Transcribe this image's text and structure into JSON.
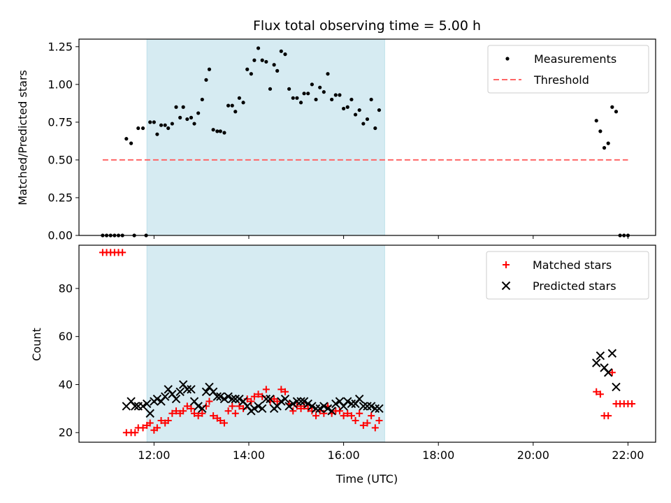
{
  "chart_data": [
    {
      "type": "scatter",
      "title": "Flux total observing time = 5.00 h",
      "ylabel": "Matched/Predicted stars",
      "xlabel": "",
      "xlim": [
        "10:25",
        "22:35"
      ],
      "ylim": [
        0,
        1.3
      ],
      "yticks": [
        "0.00",
        "0.25",
        "0.50",
        "0.75",
        "1.00",
        "1.25"
      ],
      "yticks_values": [
        0,
        0.25,
        0.5,
        0.75,
        1.0,
        1.25
      ],
      "xtick_times": [
        "12:00",
        "14:00",
        "16:00",
        "18:00",
        "20:00",
        "22:00"
      ],
      "shaded_span": [
        "11:51",
        "16:52"
      ],
      "shaded_color": "#add8e6",
      "legend": "top-right",
      "series": [
        {
          "name": "Measurements",
          "color": "#000000",
          "marker": "dot",
          "points": [
            [
              "10:55",
              0
            ],
            [
              "11:00",
              0
            ],
            [
              "11:05",
              0
            ],
            [
              "11:10",
              0
            ],
            [
              "11:15",
              0
            ],
            [
              "11:20",
              0
            ],
            [
              "11:25",
              0.64
            ],
            [
              "11:31",
              0.61
            ],
            [
              "11:35",
              0
            ],
            [
              "11:40",
              0.71
            ],
            [
              "11:46",
              0.71
            ],
            [
              "11:50",
              0
            ],
            [
              "11:55",
              0.75
            ],
            [
              "12:00",
              0.75
            ],
            [
              "12:04",
              0.67
            ],
            [
              "12:09",
              0.73
            ],
            [
              "12:14",
              0.73
            ],
            [
              "12:18",
              0.71
            ],
            [
              "12:23",
              0.74
            ],
            [
              "12:28",
              0.85
            ],
            [
              "12:33",
              0.78
            ],
            [
              "12:37",
              0.85
            ],
            [
              "12:42",
              0.77
            ],
            [
              "12:47",
              0.78
            ],
            [
              "12:51",
              0.74
            ],
            [
              "12:56",
              0.81
            ],
            [
              "13:01",
              0.9
            ],
            [
              "13:06",
              1.03
            ],
            [
              "13:10",
              1.1
            ],
            [
              "13:15",
              0.7
            ],
            [
              "13:20",
              0.69
            ],
            [
              "13:24",
              0.69
            ],
            [
              "13:29",
              0.68
            ],
            [
              "13:34",
              0.86
            ],
            [
              "13:39",
              0.86
            ],
            [
              "13:43",
              0.82
            ],
            [
              "13:48",
              0.91
            ],
            [
              "13:53",
              0.88
            ],
            [
              "13:58",
              1.1
            ],
            [
              "14:03",
              1.07
            ],
            [
              "14:07",
              1.16
            ],
            [
              "14:12",
              1.24
            ],
            [
              "14:17",
              1.16
            ],
            [
              "14:22",
              1.15
            ],
            [
              "14:27",
              0.97
            ],
            [
              "14:32",
              1.13
            ],
            [
              "14:36",
              1.09
            ],
            [
              "14:41",
              1.22
            ],
            [
              "14:46",
              1.2
            ],
            [
              "14:51",
              0.97
            ],
            [
              "14:56",
              0.91
            ],
            [
              "15:01",
              0.91
            ],
            [
              "15:06",
              0.88
            ],
            [
              "15:10",
              0.94
            ],
            [
              "15:15",
              0.94
            ],
            [
              "15:20",
              1.0
            ],
            [
              "15:25",
              0.9
            ],
            [
              "15:30",
              0.98
            ],
            [
              "15:35",
              0.95
            ],
            [
              "15:40",
              1.07
            ],
            [
              "15:45",
              0.9
            ],
            [
              "15:50",
              0.93
            ],
            [
              "15:55",
              0.93
            ],
            [
              "16:00",
              0.84
            ],
            [
              "16:05",
              0.85
            ],
            [
              "16:10",
              0.9
            ],
            [
              "16:15",
              0.8
            ],
            [
              "16:20",
              0.83
            ],
            [
              "16:25",
              0.74
            ],
            [
              "16:30",
              0.77
            ],
            [
              "16:35",
              0.9
            ],
            [
              "16:40",
              0.71
            ],
            [
              "16:45",
              0.83
            ],
            [
              "21:20",
              0.76
            ],
            [
              "21:25",
              0.69
            ],
            [
              "21:30",
              0.58
            ],
            [
              "21:35",
              0.61
            ],
            [
              "21:40",
              0.85
            ],
            [
              "21:45",
              0.82
            ],
            [
              "21:50",
              0
            ],
            [
              "21:55",
              0
            ],
            [
              "22:00",
              0
            ]
          ]
        },
        {
          "name": "Threshold",
          "color": "#ff6666",
          "style": "dashed",
          "points": [
            [
              "10:55",
              0.5
            ],
            [
              "22:00",
              0.5
            ]
          ]
        }
      ]
    },
    {
      "type": "scatter",
      "title": "",
      "ylabel": "Count",
      "xlabel": "Time (UTC)",
      "xlim": [
        "10:25",
        "22:35"
      ],
      "ylim": [
        16,
        98
      ],
      "yticks": [
        "20",
        "40",
        "60",
        "80"
      ],
      "yticks_values": [
        20,
        40,
        60,
        80
      ],
      "xtick_labels": [
        "12:00",
        "14:00",
        "16:00",
        "18:00",
        "20:00",
        "22:00"
      ],
      "xtick_times": [
        "12:00",
        "14:00",
        "16:00",
        "18:00",
        "20:00",
        "22:00"
      ],
      "shaded_span": [
        "11:51",
        "16:52"
      ],
      "shaded_color": "#add8e6",
      "legend": "top-right",
      "series": [
        {
          "name": "Matched stars",
          "color": "#ff0000",
          "marker": "plus",
          "points": [
            [
              "10:55",
              95
            ],
            [
              "11:00",
              95
            ],
            [
              "11:05",
              95
            ],
            [
              "11:10",
              95
            ],
            [
              "11:15",
              95
            ],
            [
              "11:20",
              95
            ],
            [
              "11:25",
              20
            ],
            [
              "11:31",
              20
            ],
            [
              "11:36",
              20
            ],
            [
              "11:40",
              22
            ],
            [
              "11:46",
              22
            ],
            [
              "11:51",
              23
            ],
            [
              "11:55",
              24
            ],
            [
              "12:00",
              21
            ],
            [
              "12:04",
              22
            ],
            [
              "12:09",
              25
            ],
            [
              "12:14",
              24
            ],
            [
              "12:18",
              25
            ],
            [
              "12:23",
              28
            ],
            [
              "12:28",
              29
            ],
            [
              "12:33",
              28
            ],
            [
              "12:37",
              29
            ],
            [
              "12:42",
              31
            ],
            [
              "12:47",
              30
            ],
            [
              "12:51",
              28
            ],
            [
              "12:56",
              27
            ],
            [
              "13:01",
              28
            ],
            [
              "13:06",
              31
            ],
            [
              "13:10",
              33
            ],
            [
              "13:15",
              27
            ],
            [
              "13:20",
              26
            ],
            [
              "13:24",
              25
            ],
            [
              "13:29",
              24
            ],
            [
              "13:34",
              29
            ],
            [
              "13:39",
              31
            ],
            [
              "13:43",
              28
            ],
            [
              "13:48",
              31
            ],
            [
              "13:53",
              30
            ],
            [
              "13:58",
              34
            ],
            [
              "14:03",
              33
            ],
            [
              "14:07",
              35
            ],
            [
              "14:12",
              36
            ],
            [
              "14:17",
              35
            ],
            [
              "14:22",
              38
            ],
            [
              "14:27",
              33
            ],
            [
              "14:32",
              34
            ],
            [
              "14:36",
              33
            ],
            [
              "14:41",
              38
            ],
            [
              "14:46",
              37
            ],
            [
              "14:51",
              32
            ],
            [
              "14:56",
              29
            ],
            [
              "15:01",
              31
            ],
            [
              "15:06",
              30
            ],
            [
              "15:10",
              31
            ],
            [
              "15:15",
              30
            ],
            [
              "15:20",
              29
            ],
            [
              "15:25",
              27
            ],
            [
              "15:30",
              29
            ],
            [
              "15:35",
              28
            ],
            [
              "15:40",
              31
            ],
            [
              "15:45",
              28
            ],
            [
              "15:50",
              29
            ],
            [
              "15:55",
              29
            ],
            [
              "16:00",
              27
            ],
            [
              "16:05",
              28
            ],
            [
              "16:10",
              27
            ],
            [
              "16:15",
              25
            ],
            [
              "16:20",
              28
            ],
            [
              "16:25",
              23
            ],
            [
              "16:30",
              24
            ],
            [
              "16:35",
              27
            ],
            [
              "16:40",
              22
            ],
            [
              "16:45",
              25
            ],
            [
              "21:20",
              37
            ],
            [
              "21:25",
              36
            ],
            [
              "21:30",
              27
            ],
            [
              "21:35",
              27
            ],
            [
              "21:40",
              45
            ],
            [
              "21:45",
              32
            ],
            [
              "21:50",
              32
            ],
            [
              "21:55",
              32
            ],
            [
              "22:00",
              32
            ],
            [
              "22:05",
              32
            ]
          ]
        },
        {
          "name": "Predicted stars",
          "color": "#000000",
          "marker": "x",
          "points": [
            [
              "11:25",
              31
            ],
            [
              "11:31",
              33
            ],
            [
              "11:36",
              31
            ],
            [
              "11:40",
              31
            ],
            [
              "11:46",
              31
            ],
            [
              "11:51",
              32
            ],
            [
              "11:55",
              28
            ],
            [
              "12:00",
              33
            ],
            [
              "12:04",
              34
            ],
            [
              "12:09",
              33
            ],
            [
              "12:14",
              35
            ],
            [
              "12:18",
              38
            ],
            [
              "12:23",
              36
            ],
            [
              "12:28",
              34
            ],
            [
              "12:33",
              37
            ],
            [
              "12:37",
              40
            ],
            [
              "12:42",
              38
            ],
            [
              "12:47",
              38
            ],
            [
              "12:51",
              33
            ],
            [
              "12:56",
              31
            ],
            [
              "13:01",
              30
            ],
            [
              "13:06",
              37
            ],
            [
              "13:10",
              39
            ],
            [
              "13:15",
              37
            ],
            [
              "13:20",
              35
            ],
            [
              "13:24",
              35
            ],
            [
              "13:29",
              34
            ],
            [
              "13:34",
              35
            ],
            [
              "13:39",
              34
            ],
            [
              "13:43",
              34
            ],
            [
              "13:48",
              34
            ],
            [
              "13:53",
              33
            ],
            [
              "13:58",
              31
            ],
            [
              "14:03",
              29
            ],
            [
              "14:07",
              30
            ],
            [
              "14:12",
              31
            ],
            [
              "14:17",
              30
            ],
            [
              "14:22",
              34
            ],
            [
              "14:27",
              34
            ],
            [
              "14:32",
              30
            ],
            [
              "14:36",
              31
            ],
            [
              "14:41",
              33
            ],
            [
              "14:46",
              34
            ],
            [
              "14:51",
              31
            ],
            [
              "14:56",
              32
            ],
            [
              "15:01",
              33
            ],
            [
              "15:06",
              33
            ],
            [
              "15:10",
              33
            ],
            [
              "15:15",
              32
            ],
            [
              "15:20",
              31
            ],
            [
              "15:25",
              30
            ],
            [
              "15:30",
              30
            ],
            [
              "15:35",
              31
            ],
            [
              "15:40",
              30
            ],
            [
              "15:45",
              29
            ],
            [
              "15:50",
              32
            ],
            [
              "15:55",
              33
            ],
            [
              "16:00",
              31
            ],
            [
              "16:05",
              33
            ],
            [
              "16:10",
              32
            ],
            [
              "16:15",
              32
            ],
            [
              "16:20",
              34
            ],
            [
              "16:25",
              31
            ],
            [
              "16:30",
              31
            ],
            [
              "16:35",
              31
            ],
            [
              "16:40",
              30
            ],
            [
              "16:45",
              30
            ],
            [
              "21:20",
              49
            ],
            [
              "21:25",
              52
            ],
            [
              "21:30",
              47
            ],
            [
              "21:35",
              45
            ],
            [
              "21:40",
              53
            ],
            [
              "21:45",
              39
            ]
          ]
        }
      ]
    }
  ]
}
